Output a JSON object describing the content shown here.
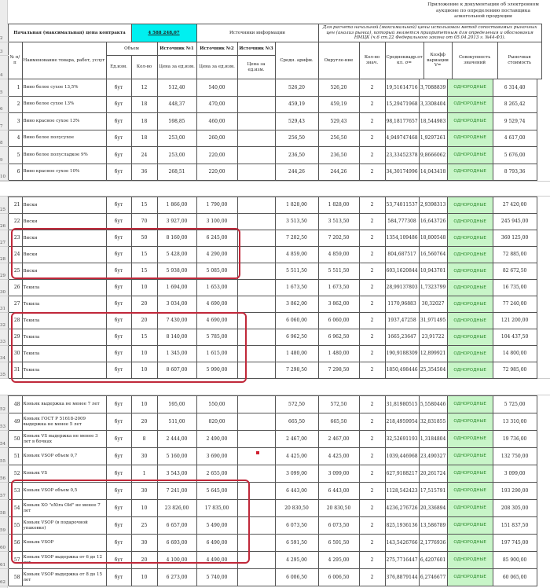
{
  "appendix_note": "Приложение к документации об электронном аукционе по определению поставщика алкогольной продукции",
  "header": {
    "nmck_label": "Начальная (максимальная) цена контракта",
    "nmck_value": "4 588 248,07",
    "sources_label": "Источники информации",
    "method_note": "Для расчета начальной (максимальной) цены использован метод сопоставимых рыночных цен (анализ рынка), который является приоритетным для определения и обоснования НМЦК (ч.6 ст.22 Федерального закона от 05.04.2013 г. №44-ФЗ).",
    "col_num": "№ п/п",
    "col_name": "Наименование товара, работ, услуг",
    "col_volume": "Объем",
    "col_unit": "Ед.изм.",
    "col_qty": "Кол-во",
    "src1": "Источник №1",
    "src2": "Источник №2",
    "src3": "Источник №3",
    "price_unit": "Цена за ед.изм.",
    "col_avg": "Средн. арифм.",
    "col_round": "Округле-ние",
    "col_count": "Кол-во знач.",
    "col_sd": "Среднеквадр.от кл. σ=",
    "col_coef": "Коэфф вариации V=",
    "col_set": "Совокупность значений",
    "col_market": "Рыночная стоимость"
  },
  "header_row_numbers": [
    "1",
    "2",
    "3",
    "4"
  ],
  "status_color": "#c8f5c8",
  "highlight_color": "#c0283a",
  "sections": [
    {
      "rows": [
        [
          "5",
          "1",
          "Вино белое сухое 13,5%",
          "бут",
          "12",
          "512,40",
          "540,00",
          "",
          "526,20",
          "526,20",
          "2",
          "19,51614716",
          "3,7088839",
          "ОДНОРОДНЫЕ",
          "6 314,40"
        ],
        [
          "6",
          "2",
          "Вино белое сухое 13%",
          "бут",
          "18",
          "448,37",
          "470,00",
          "",
          "459,19",
          "459,19",
          "2",
          "15,29471968",
          "3,3308404",
          "ОДНОРОДНЫЕ",
          "8 265,42"
        ],
        [
          "7",
          "3",
          "Вино красное сухое 13%",
          "бут",
          "18",
          "598,85",
          "460,00",
          "",
          "529,43",
          "529,43",
          "2",
          "98,18177657",
          "18,544983",
          "ОДНОРОДНЫЕ",
          "9 529,74"
        ],
        [
          "8",
          "4",
          "Вино белое полусухое",
          "бут",
          "18",
          "253,00",
          "260,00",
          "",
          "256,50",
          "256,50",
          "2",
          "4,949747468",
          "1,9297261",
          "ОДНОРОДНЫЕ",
          "4 617,00"
        ],
        [
          "9",
          "5",
          "Вино белое полусладкое 9%",
          "бут",
          "24",
          "253,00",
          "220,00",
          "",
          "236,50",
          "236,50",
          "2",
          "23,33452378",
          "9,8666062",
          "ОДНОРОДНЫЕ",
          "5 676,00"
        ],
        [
          "10",
          "6",
          "Вино красное сухое 10%",
          "бут",
          "36",
          "268,51",
          "220,00",
          "",
          "244,26",
          "244,26",
          "2",
          "34,30174996",
          "14,043418",
          "ОДНОРОДНЫЕ",
          "8 793,36"
        ]
      ]
    },
    {
      "rows": [
        [
          "25",
          "21",
          "Виски",
          "бут",
          "15",
          "1 866,00",
          "1 790,00",
          "",
          "1 828,00",
          "1 828,00",
          "2",
          "53,74011537",
          "2,9398313",
          "ОДНОРОДНЫЕ",
          "27 420,00"
        ],
        [
          "26",
          "22",
          "Виски",
          "бут",
          "70",
          "3 927,00",
          "3 100,00",
          "",
          "3 513,50",
          "3 513,50",
          "2",
          "584,777308",
          "16,643726",
          "ОДНОРОДНЫЕ",
          "245 945,00"
        ],
        [
          "27",
          "23",
          "Виски",
          "бут",
          "50",
          "8 160,00",
          "6 245,00",
          "",
          "7 202,50",
          "7 202,50",
          "2",
          "1354,109486",
          "18,800548",
          "ОДНОРОДНЫЕ",
          "360 125,00"
        ],
        [
          "28",
          "24",
          "Виски",
          "бут",
          "15",
          "5 428,00",
          "4 290,00",
          "",
          "4 859,00",
          "4 859,00",
          "2",
          "804,687517",
          "16,560764",
          "ОДНОРОДНЫЕ",
          "72 885,00"
        ],
        [
          "29",
          "25",
          "Виски",
          "бут",
          "15",
          "5 938,00",
          "5 085,00",
          "",
          "5 511,50",
          "5 511,50",
          "2",
          "603,1620844",
          "10,943701",
          "ОДНОРОДНЫЕ",
          "82 672,50"
        ],
        [
          "30",
          "26",
          "Текила",
          "бут",
          "10",
          "1 694,00",
          "1 653,00",
          "",
          "1 673,50",
          "1 673,50",
          "2",
          "28,99137803",
          "1,7323799",
          "ОДНОРОДНЫЕ",
          "16 735,00"
        ],
        [
          "31",
          "27",
          "Текила",
          "бут",
          "20",
          "3 034,00",
          "4 690,00",
          "",
          "3 862,00",
          "3 862,00",
          "2",
          "1170,96883",
          "30,32027",
          "ОДНОРОДНЫЕ",
          "77 240,00"
        ],
        [
          "32",
          "28",
          "Текила",
          "бут",
          "20",
          "7 430,00",
          "4 690,00",
          "",
          "6 060,00",
          "6 060,00",
          "2",
          "1937,47258",
          "31,971495",
          "ОДНОРОДНЫЕ",
          "121 200,00"
        ],
        [
          "33",
          "29",
          "Текила",
          "бут",
          "15",
          "8 140,00",
          "5 785,00",
          "",
          "6 962,50",
          "6 962,50",
          "2",
          "1665,23647",
          "23,91722",
          "ОДНОРОДНЫЕ",
          "104 437,50"
        ],
        [
          "34",
          "30",
          "Текила",
          "бут",
          "10",
          "1 345,00",
          "1 615,00",
          "",
          "1 480,00",
          "1 480,00",
          "2",
          "190,9188309",
          "12,899921",
          "ОДНОРОДНЫЕ",
          "14 800,00"
        ],
        [
          "35",
          "31",
          "Текила",
          "бут",
          "10",
          "8 607,00",
          "5 990,00",
          "",
          "7 298,50",
          "7 298,50",
          "2",
          "1850,498446",
          "25,354504",
          "ОДНОРОДНЫЕ",
          "72 985,00"
        ]
      ]
    },
    {
      "rows": [
        [
          "52",
          "48",
          "Коньяк выдержка не менее 7 лет",
          "бут",
          "10",
          "595,00",
          "550,00",
          "",
          "572,50",
          "572,50",
          "2",
          "31,81980515",
          "5,5580446",
          "ОДНОРОДНЫЕ",
          "5 725,00"
        ],
        [
          "53",
          "49",
          "Коньяк ГОСТ Р 51618-2009 выдержка не менее 5 лет",
          "бут",
          "20",
          "511,00",
          "820,00",
          "",
          "665,50",
          "665,50",
          "2",
          "218,4959954",
          "32,831855",
          "ОДНОРОДНЫЕ",
          "13 310,00"
        ],
        [
          "54",
          "50",
          "Коньяк VS выдержка не менее 3 лет в бочках",
          "бут",
          "8",
          "2 444,00",
          "2 490,00",
          "",
          "2 467,00",
          "2 467,00",
          "2",
          "32,52691193",
          "1,3184804",
          "ОДНОРОДНЫЕ",
          "19 736,00"
        ],
        [
          "55",
          "51",
          "Коньяк VSOP объем 0,7",
          "бут",
          "30",
          "5 160,00",
          "3 690,00",
          "",
          "4 425,00",
          "4 425,00",
          "2",
          "1039,446968",
          "23,490327",
          "ОДНОРОДНЫЕ",
          "132 750,00"
        ],
        [
          "56",
          "52",
          "Коньяк VS",
          "бут",
          "1",
          "3 543,00",
          "2 655,00",
          "",
          "3 099,00",
          "3 099,00",
          "2",
          "627,9188217",
          "20,261724",
          "ОДНОРОДНЫЕ",
          "3 099,00"
        ],
        [
          "57",
          "53",
          "Коньяк VSOP объем 0,5",
          "бут",
          "30",
          "7 241,00",
          "5 645,00",
          "",
          "6 443,00",
          "6 443,00",
          "2",
          "1128,542423",
          "17,515791",
          "ОДНОРОДНЫЕ",
          "193 290,00"
        ],
        [
          "58",
          "54",
          "Коньяк XO \"eXtra Old\" не менее 7 лет",
          "бут",
          "10",
          "23 826,00",
          "17 835,00",
          "",
          "20 830,50",
          "20 830,50",
          "2",
          "4236,276726",
          "20,336894",
          "ОДНОРОДНЫЕ",
          "208 305,00"
        ],
        [
          "59",
          "55",
          "Коньяк VSOP (в подарочной упаковке)",
          "бут",
          "25",
          "6 657,00",
          "5 490,00",
          "",
          "6 073,50",
          "6 073,50",
          "2",
          "825,1936136",
          "13,586789",
          "ОДНОРОДНЫЕ",
          "151 837,50"
        ],
        [
          "60",
          "56",
          "Коньяк VSOP",
          "бут",
          "30",
          "6 693,00",
          "6 490,00",
          "",
          "6 591,50",
          "6 591,50",
          "2",
          "143,5426766",
          "2,1776936",
          "ОДНОРОДНЫЕ",
          "197 745,00"
        ],
        [
          "61",
          "57",
          "Коньяк VSOP выдержка от 6 до 12 лет",
          "бут",
          "20",
          "4 100,00",
          "4 490,00",
          "",
          "4 295,00",
          "4 295,00",
          "2",
          "275,7716447",
          "6,4207601",
          "ОДНОРОДНЫЕ",
          "85 900,00"
        ],
        [
          "62",
          "58",
          "Коньяк VSOP выдержка от 8 до 15 лет",
          "бут",
          "10",
          "6 273,00",
          "5 740,00",
          "",
          "6 006,50",
          "6 006,50",
          "2",
          "376,8879144",
          "6,2746677",
          "ОДНОРОДНЫЕ",
          "60 065,00"
        ]
      ]
    }
  ]
}
